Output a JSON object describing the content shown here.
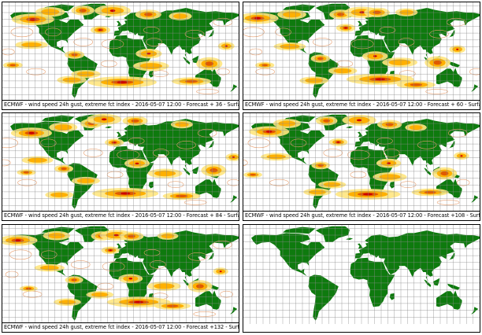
{
  "colors": {
    "land": "#0e7a0e",
    "ocean": "#ffffff",
    "grid": "#8c8c8c",
    "contour": "#e8a070",
    "index_low": "#ffe680",
    "index_mid": "#ffb000",
    "index_high": "#e05a00",
    "index_extreme": "#cc0000"
  },
  "panels": [
    {
      "caption": "ECMWF - wind speed 24h gust, extreme fct index - 2016-05-07 12:00 - Forecast + 36 - Surface",
      "has_overlay": true,
      "intensity": 0.85
    },
    {
      "caption": "ECMWF - wind speed 24h gust, extreme fct index - 2016-05-07 12:00 - Forecast + 60 - Surface",
      "has_overlay": true,
      "intensity": 0.8
    },
    {
      "caption": "ECMWF - wind speed 24h gust, extreme fct index - 2016-05-07 12:00 - Forecast + 84 - Surface",
      "has_overlay": true,
      "intensity": 0.75
    },
    {
      "caption": "ECMWF - wind speed 24h gust, extreme fct index - 2016-05-07 12:00 - Forecast +108 - Surface",
      "has_overlay": true,
      "intensity": 0.7
    },
    {
      "caption": "ECMWF - wind speed 24h gust, extreme fct index - 2016-05-07 12:00 - Forecast +132 - Surface",
      "has_overlay": true,
      "intensity": 0.65
    },
    {
      "caption": "",
      "has_overlay": false,
      "intensity": 0
    }
  ]
}
